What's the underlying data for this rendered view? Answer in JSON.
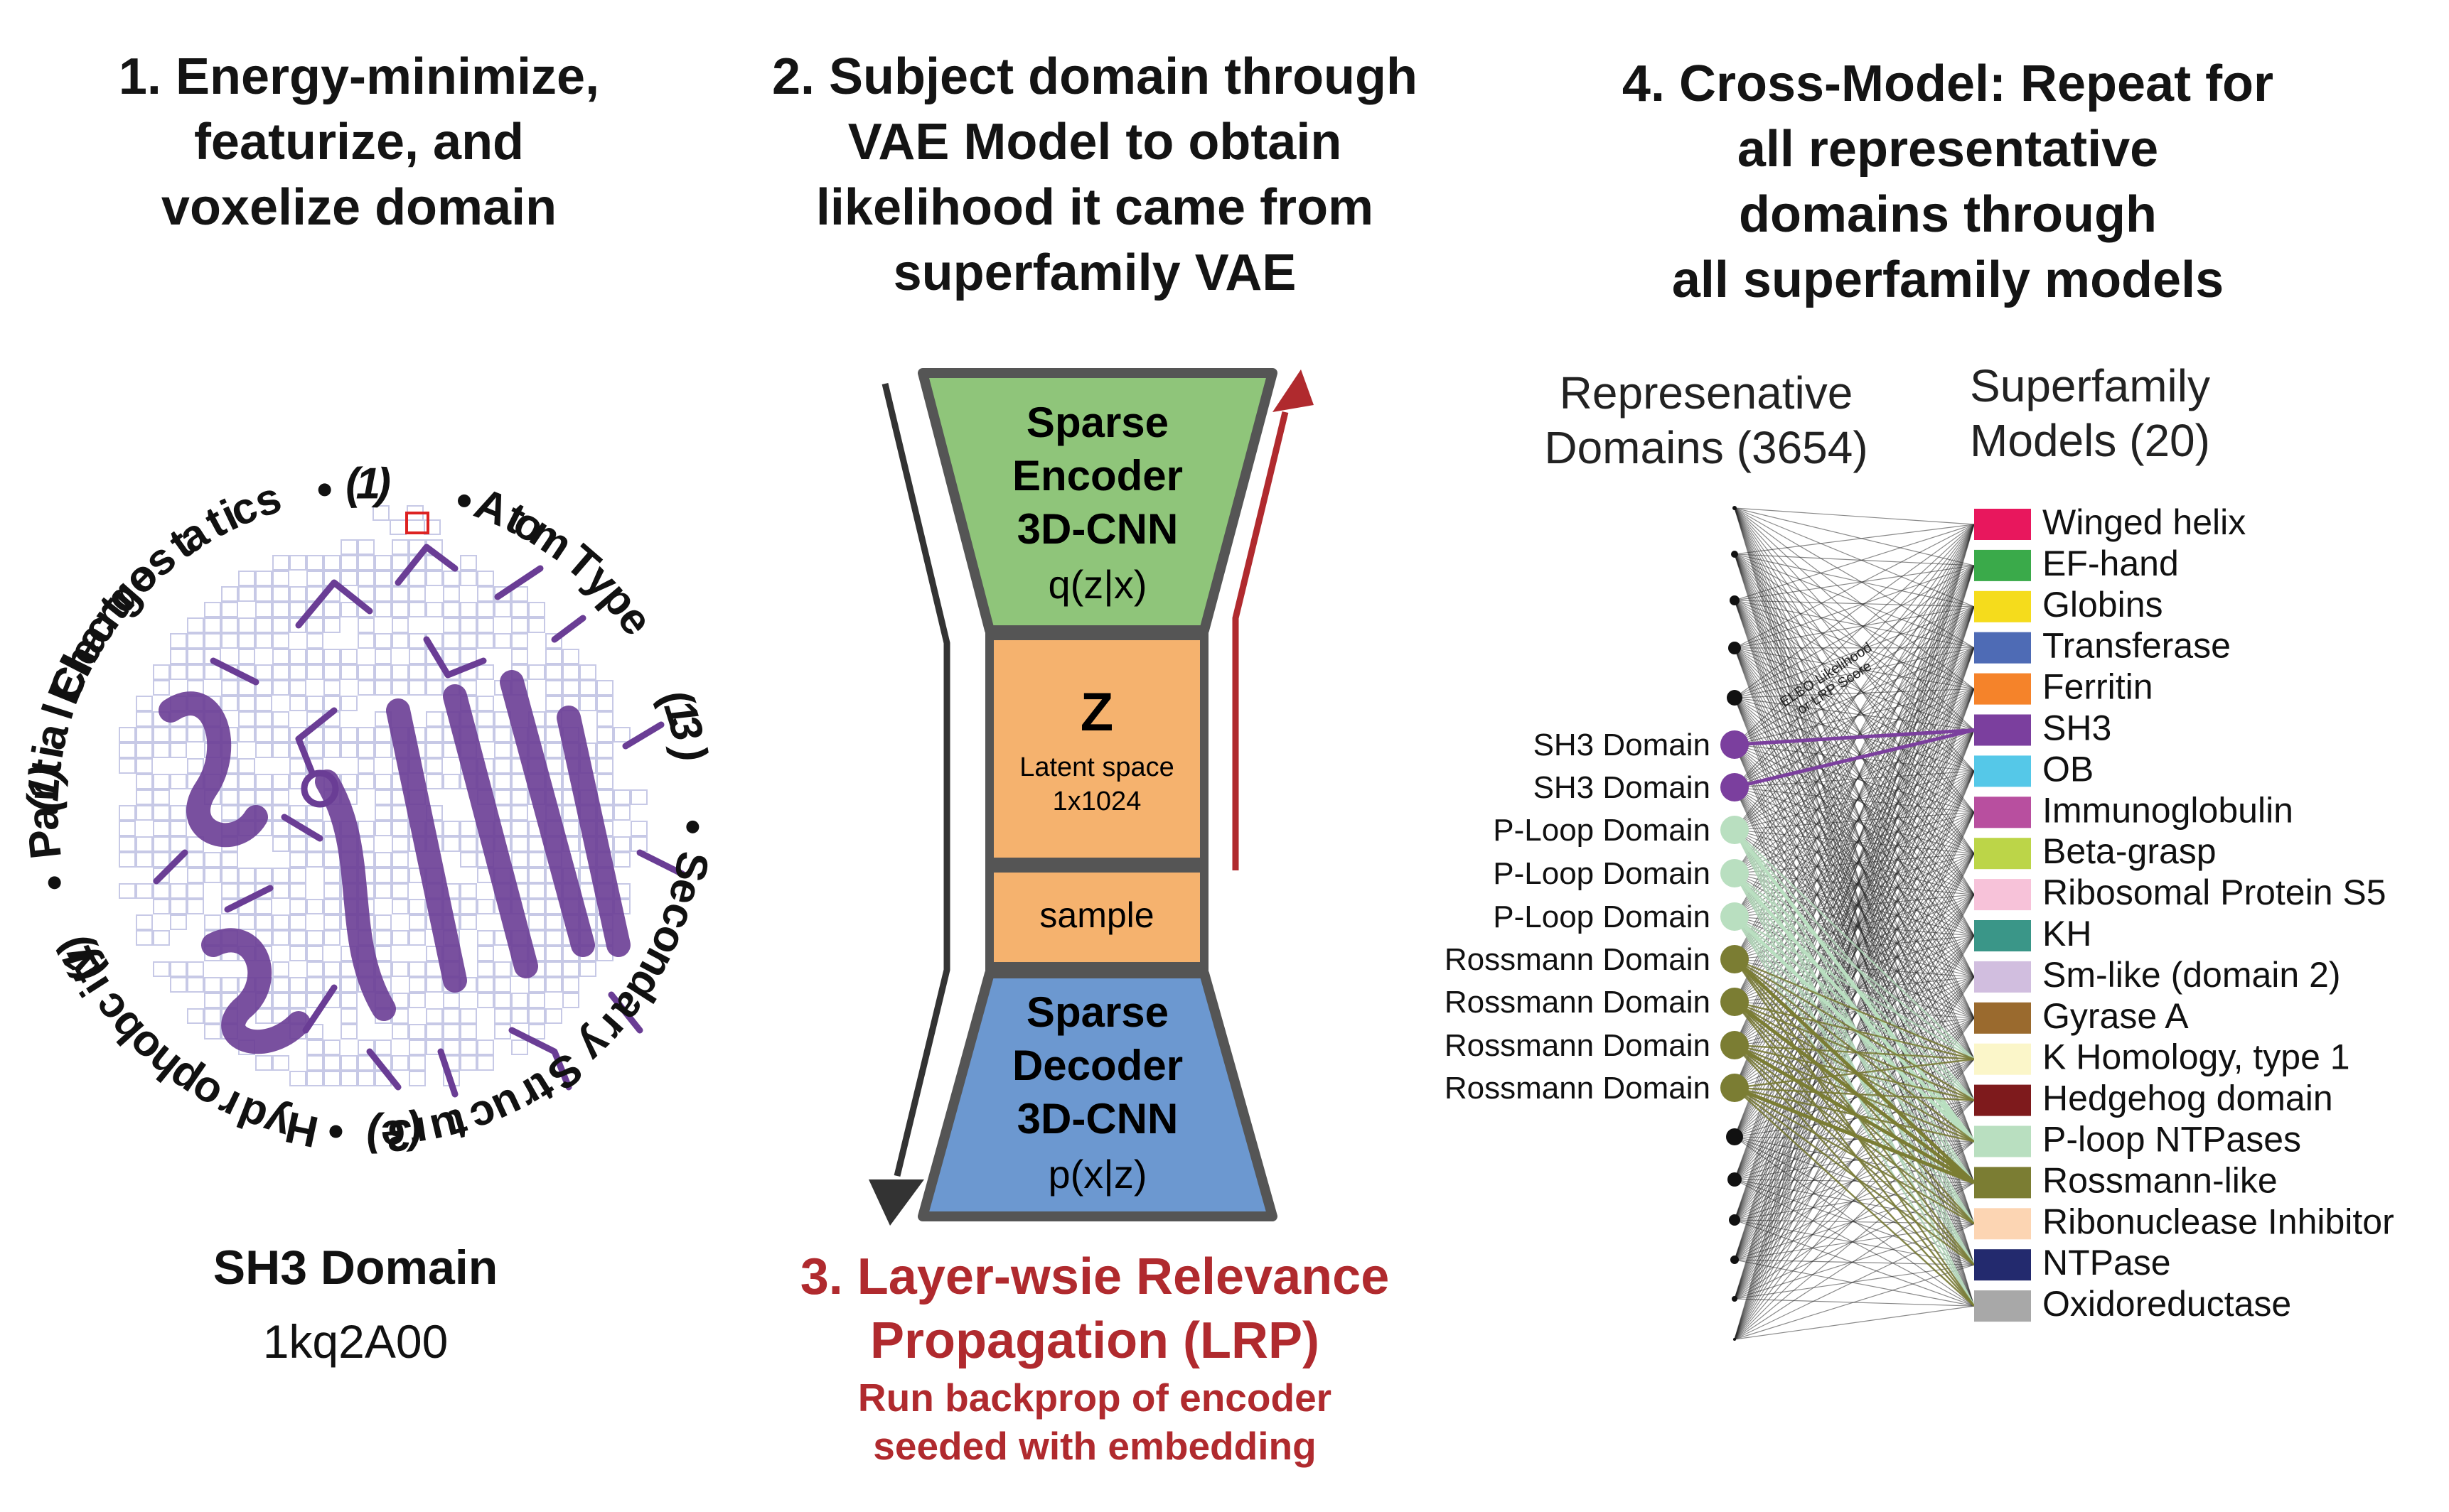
{
  "panel1": {
    "title_lines": [
      "1. Energy-minimize,",
      "featurize, and",
      "voxelize domain"
    ],
    "ring_labels": [
      "Electrostatics",
      "(1)",
      "Atom Type",
      "(13)",
      "Secondary Structure",
      "(3)",
      "Hydrophobcity",
      "(1)",
      "Partial Charge",
      "(1)"
    ],
    "domain_name": "SH3 Domain",
    "domain_id": "1kq2A00"
  },
  "panel2": {
    "title_lines": [
      "2. Subject domain through",
      "VAE Model to obtain",
      "likelihood it came from",
      "superfamily VAE"
    ],
    "encoder": {
      "lines": [
        "Sparse",
        "Encoder",
        "3D-CNN"
      ],
      "formula": "q(z|x)"
    },
    "latent": {
      "symbol": "Z",
      "line1": "Latent space",
      "line2": "1x1024"
    },
    "sample_label": "sample",
    "decoder": {
      "lines": [
        "Sparse",
        "Decoder",
        "3D-CNN"
      ],
      "formula": "p(x|z)"
    },
    "lrp_title_lines": [
      "3. Layer-wsie Relevance",
      "Propagation (LRP)"
    ],
    "lrp_sub_lines": [
      "Run backprop of encoder",
      "seeded with embedding"
    ]
  },
  "panel4": {
    "title_lines": [
      "4. Cross-Model: Repeat for",
      "all representative",
      "domains through",
      "all superfamily models"
    ],
    "rep_header_lines": [
      "Represenative",
      "Domains (3654)"
    ],
    "sf_header_lines": [
      "Superfamily",
      "Models (20)"
    ],
    "edge_label_lines": [
      "ELBO Likelihood",
      "or LRP Score"
    ],
    "domains": [
      {
        "label": "SH3 Domain",
        "color": "#7b3f9e",
        "target": 5
      },
      {
        "label": "SH3 Domain",
        "color": "#7b3f9e",
        "target": 5
      },
      {
        "label": "P-Loop Domain",
        "color": "#b9dfc0",
        "target": 15
      },
      {
        "label": "P-Loop Domain",
        "color": "#b9dfc0",
        "target": 15
      },
      {
        "label": "P-Loop Domain",
        "color": "#b9dfc0",
        "target": 15
      },
      {
        "label": "Rossmann Domain",
        "color": "#7b7d33",
        "target": 16
      },
      {
        "label": "Rossmann Domain",
        "color": "#7b7d33",
        "target": 16
      },
      {
        "label": "Rossmann Domain",
        "color": "#7b7d33",
        "target": 16
      },
      {
        "label": "Rossmann Domain",
        "color": "#7b7d33",
        "target": 16
      }
    ],
    "superfamilies": [
      {
        "label": "Winged helix",
        "color": "#e8175d"
      },
      {
        "label": "EF-hand",
        "color": "#3aaa4a"
      },
      {
        "label": "Globins",
        "color": "#f5dc1c"
      },
      {
        "label": "Transferase",
        "color": "#4e6bb5"
      },
      {
        "label": "Ferritin",
        "color": "#f5832a"
      },
      {
        "label": "SH3",
        "color": "#7b3f9e"
      },
      {
        "label": "OB",
        "color": "#55c8e8"
      },
      {
        "label": "Immunoglobulin",
        "color": "#b84f9f"
      },
      {
        "label": "Beta-grasp",
        "color": "#bcd548"
      },
      {
        "label": "Ribosomal Protein S5",
        "color": "#f7c2d9"
      },
      {
        "label": "KH",
        "color": "#3a9688"
      },
      {
        "label": "Sm-like (domain 2)",
        "color": "#d1bedf"
      },
      {
        "label": "Gyrase A",
        "color": "#9a6a2e"
      },
      {
        "label": "K Homology, type 1",
        "color": "#fbf6c9"
      },
      {
        "label": "Hedgehog domain",
        "color": "#7e1a1c"
      },
      {
        "label": "P-loop NTPases",
        "color": "#b9dfc0"
      },
      {
        "label": "Rossmann-like",
        "color": "#7b7d33"
      },
      {
        "label": "Ribonuclease Inhibitor",
        "color": "#fcd5b3"
      },
      {
        "label": "NTPase",
        "color": "#232a6e"
      },
      {
        "label": "Oxidoreductase",
        "color": "#a8a8a8"
      }
    ]
  },
  "colors": {
    "encoder": "#8fc57a",
    "latent": "#f5b26e",
    "decoder": "#6c98d0",
    "box_border": "#555555",
    "lrp": "#b02a2e",
    "protein": "#6a3d95",
    "voxel": "#c7c9e6"
  }
}
